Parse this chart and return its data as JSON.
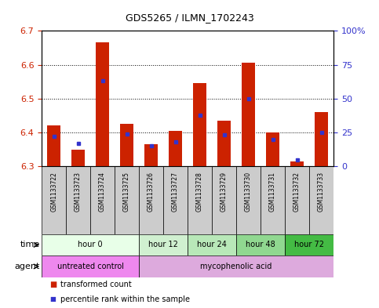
{
  "title": "GDS5265 / ILMN_1702243",
  "samples": [
    "GSM1133722",
    "GSM1133723",
    "GSM1133724",
    "GSM1133725",
    "GSM1133726",
    "GSM1133727",
    "GSM1133728",
    "GSM1133729",
    "GSM1133730",
    "GSM1133731",
    "GSM1133732",
    "GSM1133733"
  ],
  "red_values": [
    6.42,
    6.35,
    6.665,
    6.425,
    6.365,
    6.405,
    6.545,
    6.435,
    6.605,
    6.4,
    6.315,
    6.46
  ],
  "blue_values_pct": [
    22,
    17,
    63,
    24,
    15,
    18,
    38,
    23,
    50,
    20,
    5,
    25
  ],
  "ymin": 6.3,
  "ymax": 6.7,
  "yticks_left": [
    6.3,
    6.4,
    6.5,
    6.6,
    6.7
  ],
  "yticks_right_pct": [
    0,
    25,
    50,
    75,
    100
  ],
  "bar_color": "#cc2200",
  "blue_color": "#3333cc",
  "bar_base": 6.3,
  "time_groups": [
    {
      "label": "hour 0",
      "start": 0,
      "end": 4,
      "color": "#e8ffe8"
    },
    {
      "label": "hour 12",
      "start": 4,
      "end": 6,
      "color": "#d0f0d0"
    },
    {
      "label": "hour 24",
      "start": 6,
      "end": 8,
      "color": "#b8e8b8"
    },
    {
      "label": "hour 48",
      "start": 8,
      "end": 10,
      "color": "#90d890"
    },
    {
      "label": "hour 72",
      "start": 10,
      "end": 12,
      "color": "#44bb44"
    }
  ],
  "agent_groups": [
    {
      "label": "untreated control",
      "start": 0,
      "end": 4,
      "color": "#ee88ee"
    },
    {
      "label": "mycophenolic acid",
      "start": 4,
      "end": 12,
      "color": "#ddaadd"
    }
  ],
  "bg_color": "#ffffff",
  "tick_label_color_left": "#cc2200",
  "tick_label_color_right": "#3333cc",
  "bar_width": 0.55,
  "cell_bg": "#cccccc"
}
